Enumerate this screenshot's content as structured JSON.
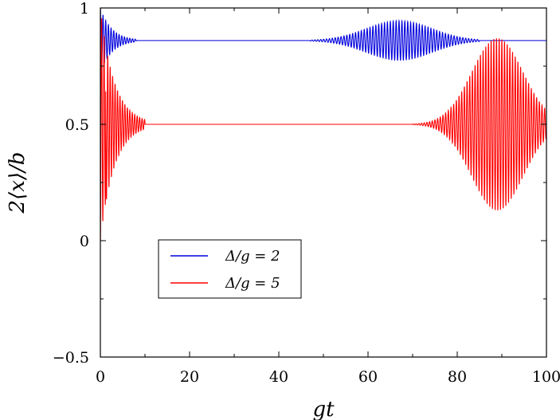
{
  "chart_data": {
    "type": "line",
    "title": "",
    "xlabel": "gt",
    "ylabel": "2⟨x⟩/b",
    "xlim": [
      0,
      100
    ],
    "ylim": [
      -0.5,
      1
    ],
    "x_ticks": [
      0,
      20,
      40,
      60,
      80,
      100
    ],
    "x_tick_labels": [
      "0",
      "20",
      "40",
      "60",
      "80",
      "100"
    ],
    "y_ticks": [
      -0.5,
      0,
      0.5,
      1
    ],
    "y_tick_labels": [
      "−0.5",
      "0",
      "0.5",
      "1"
    ],
    "grid": false,
    "legend_position": "lower-left",
    "series": [
      {
        "name": "Δ/g = 2",
        "color": "#0000dd",
        "steady_value": 0.86,
        "transient": {
          "start": 0,
          "end": 8,
          "initial_amplitude": 0.14,
          "approx_period": 0.6
        },
        "revival": {
          "center": 67,
          "start": 47,
          "end": 85,
          "max_amplitude": 0.085,
          "approx_period": 0.65
        }
      },
      {
        "name": "Δ/g = 5",
        "color": "#ff0000",
        "steady_value": 0.5,
        "transient": {
          "start": 0,
          "end": 10,
          "initial_amplitude": 0.5,
          "approx_period": 0.55
        },
        "revival": {
          "center": 89,
          "start": 70,
          "end": 100,
          "max_amplitude": 0.37,
          "approx_period": 0.6
        }
      }
    ]
  }
}
